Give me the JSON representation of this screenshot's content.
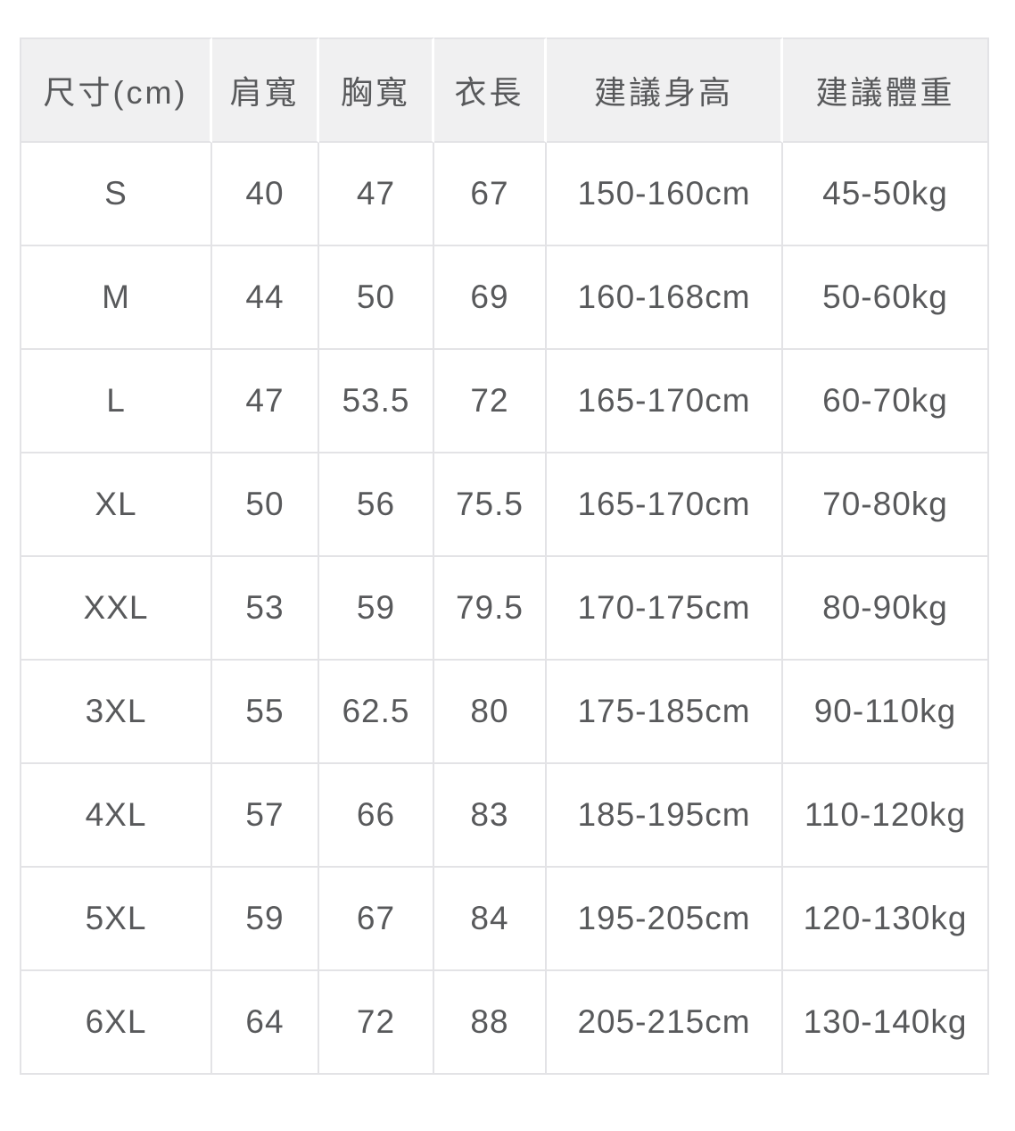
{
  "chart_data": {
    "type": "table",
    "columns": [
      "尺寸(cm)",
      "肩寬",
      "胸寬",
      "衣長",
      "建議身高",
      "建議體重"
    ],
    "rows": [
      [
        "S",
        "40",
        "47",
        "67",
        "150-160cm",
        "45-50kg"
      ],
      [
        "M",
        "44",
        "50",
        "69",
        "160-168cm",
        "50-60kg"
      ],
      [
        "L",
        "47",
        "53.5",
        "72",
        "165-170cm",
        "60-70kg"
      ],
      [
        "XL",
        "50",
        "56",
        "75.5",
        "165-170cm",
        "70-80kg"
      ],
      [
        "XXL",
        "53",
        "59",
        "79.5",
        "170-175cm",
        "80-90kg"
      ],
      [
        "3XL",
        "55",
        "62.5",
        "80",
        "175-185cm",
        "90-110kg"
      ],
      [
        "4XL",
        "57",
        "66",
        "83",
        "185-195cm",
        "110-120kg"
      ],
      [
        "5XL",
        "59",
        "67",
        "84",
        "195-205cm",
        "120-130kg"
      ],
      [
        "6XL",
        "64",
        "72",
        "88",
        "205-215cm",
        "130-140kg"
      ]
    ]
  },
  "colors": {
    "header_bg": "#f0f0f1",
    "grid_line": "#e3e3e6",
    "text": "#58595b",
    "page_bg": "#ffffff"
  }
}
